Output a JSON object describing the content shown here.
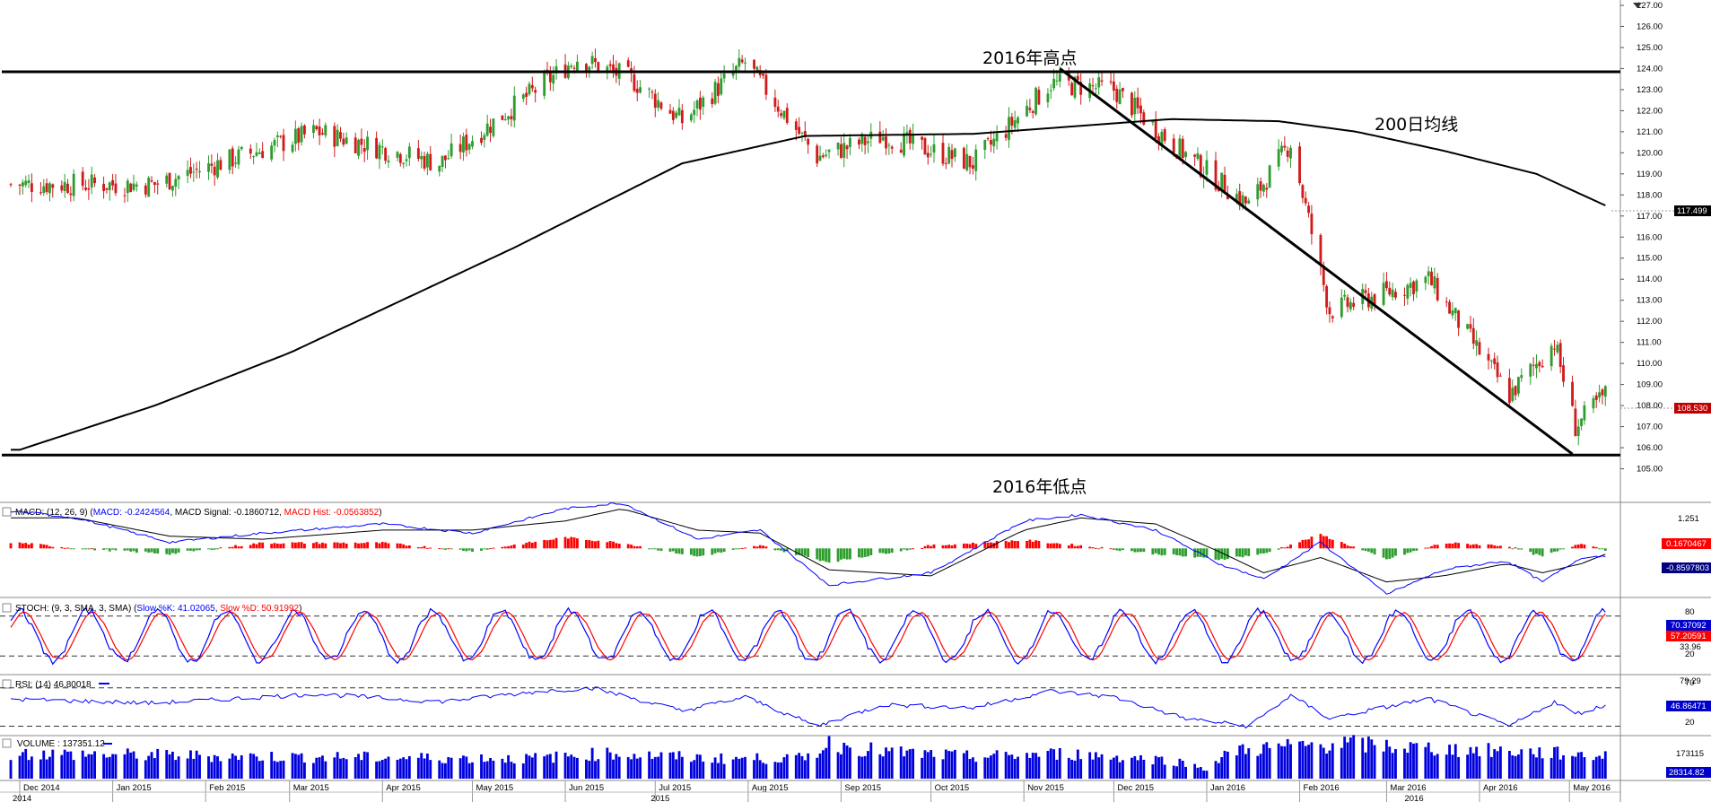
{
  "chart_data": {
    "type": "candlestick",
    "instrument_scale": {
      "ylim": [
        104.0,
        127.0
      ],
      "y_ticks": [
        "127.00",
        "126.00",
        "125.00",
        "124.00",
        "123.00",
        "122.00",
        "121.00",
        "120.00",
        "119.00",
        "118.00",
        "117.00",
        "116.00",
        "115.00",
        "114.00",
        "113.00",
        "112.00",
        "111.00",
        "110.00",
        "109.00",
        "108.00",
        "107.00",
        "106.00",
        "105.00"
      ]
    },
    "price_anchors": {
      "x": [
        "2014-12-01",
        "2015-01-15",
        "2015-03-10",
        "2015-04-20",
        "2015-06-05",
        "2015-06-23",
        "2015-07-10",
        "2015-07-31",
        "2015-08-24",
        "2015-09-15",
        "2015-10-15",
        "2015-11-10",
        "2015-12-01",
        "2015-12-20",
        "2016-01-15",
        "2016-01-29",
        "2016-02-11",
        "2016-03-15",
        "2016-04-11",
        "2016-04-26",
        "2016-05-03",
        "2016-05-13"
      ],
      "close": [
        118.5,
        118.5,
        121.0,
        119.5,
        124.5,
        123.5,
        121.5,
        124.3,
        119.8,
        120.8,
        119.5,
        123.3,
        123.0,
        120.5,
        117.5,
        120.5,
        112.5,
        114.0,
        108.5,
        111.0,
        107.0,
        108.53
      ]
    },
    "ma200_anchors": {
      "x": [
        "2014-12-01",
        "2015-01-15",
        "2015-03-01",
        "2015-05-15",
        "2015-07-10",
        "2015-08-20",
        "2015-10-15",
        "2015-12-20",
        "2016-01-25",
        "2016-02-20",
        "2016-03-20",
        "2016-04-20",
        "2016-05-13"
      ],
      "values": [
        105.9,
        108.0,
        110.5,
        115.5,
        119.5,
        120.8,
        120.9,
        121.6,
        121.5,
        121.0,
        120.1,
        119.0,
        117.5
      ]
    },
    "horizontal_lines": [
      {
        "label": "2016年高点",
        "value": 123.85
      },
      {
        "label": "2016年低点",
        "value": 105.65
      }
    ],
    "trendline": {
      "start": {
        "x": "2015-11-13",
        "y": 124.0
      },
      "end": {
        "x": "2016-05-02",
        "y": 105.7
      }
    },
    "ma_label": "200日均线",
    "last_price": {
      "value": "108.530",
      "color": "#c00000"
    },
    "ma_value": {
      "value": "117.499",
      "color": "#000000"
    },
    "x_months": [
      "Dec 2014",
      "Jan 2015",
      "Feb 2015",
      "Mar 2015",
      "Apr 2015",
      "May 2015",
      "Jun 2015",
      "Jul 2015",
      "Aug 2015",
      "Sep 2015",
      "Oct 2015",
      "Nov 2015",
      "Dec 2015",
      "Jan 2016",
      "Feb 2016",
      "Mar 2016",
      "Apr 2016",
      "May 2016"
    ],
    "x_years": [
      "2014",
      "2015",
      "2016"
    ],
    "macd": {
      "title_prefix": "MACD: (12, 26, 9) (",
      "line_text": "MACD: -0.2424564",
      "signal_text": ", MACD Signal: -0.1860712, ",
      "hist_text": "MACD Hist: -0.0563852",
      "title_suffix": ")",
      "y_tick": "1.251",
      "ylim": [
        -1.55,
        1.45
      ],
      "value_box_hist": "0.1670467",
      "value_box_line": "-0.8597803",
      "anchors": {
        "x": [
          "2014-12-01",
          "2014-12-20",
          "2015-01-20",
          "2015-02-20",
          "2015-04-01",
          "2015-05-01",
          "2015-06-01",
          "2015-06-20",
          "2015-07-15",
          "2015-08-05",
          "2015-08-28",
          "2015-10-01",
          "2015-11-01",
          "2015-11-20",
          "2015-12-15",
          "2016-01-05",
          "2016-01-20",
          "2016-02-08",
          "2016-03-01",
          "2016-03-20",
          "2016-04-10",
          "2016-04-22",
          "2016-05-05",
          "2016-05-13"
        ],
        "macd": [
          1.2,
          1.0,
          0.2,
          0.5,
          0.8,
          0.5,
          1.3,
          1.5,
          0.3,
          0.6,
          -1.2,
          -0.8,
          0.9,
          1.1,
          0.6,
          -0.5,
          -1.0,
          0.2,
          -1.5,
          -0.7,
          -0.4,
          -1.1,
          -0.3,
          -0.24
        ],
        "signal": [
          1.0,
          1.0,
          0.4,
          0.3,
          0.6,
          0.6,
          0.9,
          1.3,
          0.6,
          0.5,
          -0.7,
          -0.9,
          0.6,
          1.0,
          0.8,
          -0.1,
          -0.8,
          -0.3,
          -1.1,
          -0.9,
          -0.5,
          -0.8,
          -0.5,
          -0.19
        ]
      }
    },
    "stoch": {
      "title_prefix": "STOCH: (9, 3, SMA, 3, SMA) (",
      "k_text": "Slow %K: 41.02065",
      "sep": ", ",
      "d_text": "Slow %D: 50.91992",
      "title_suffix": ")",
      "y_ticks": [
        "80",
        "33.96",
        "20"
      ],
      "levels": [
        80,
        20
      ],
      "ylim": [
        0,
        100
      ],
      "value_box_k": "70.37092",
      "value_box_d": "57.20591",
      "cycle_days": 23
    },
    "rsi": {
      "title_prefix": "RSI: (14) ",
      "value_text": "46.80018",
      "y_ticks": [
        "79.29",
        "70",
        "20"
      ],
      "levels": [
        70,
        20
      ],
      "ylim": [
        10,
        85
      ],
      "value_box": "46.86471",
      "anchors": {
        "x": [
          "2014-12-01",
          "2015-01-15",
          "2015-03-10",
          "2015-04-20",
          "2015-05-25",
          "2015-06-10",
          "2015-07-10",
          "2015-07-31",
          "2015-08-24",
          "2015-09-15",
          "2015-10-15",
          "2015-11-10",
          "2015-12-01",
          "2015-12-25",
          "2016-01-15",
          "2016-01-29",
          "2016-02-11",
          "2016-03-15",
          "2016-04-11",
          "2016-04-26",
          "2016-05-03",
          "2016-05-13"
        ],
        "values": [
          55,
          50,
          62,
          52,
          66,
          70,
          40,
          58,
          20,
          48,
          44,
          66,
          58,
          30,
          20,
          60,
          30,
          56,
          20,
          52,
          36,
          47
        ]
      }
    },
    "volume": {
      "title": "VOLUME : 137351.12",
      "y_tick": "173115",
      "value_box": "28314.82",
      "ymax": 240000,
      "anchors": {
        "x": [
          "2014-12-01",
          "2015-03-01",
          "2015-05-20",
          "2015-06-15",
          "2015-07-20",
          "2015-08-20",
          "2015-08-28",
          "2015-09-15",
          "2015-10-15",
          "2015-11-15",
          "2015-12-20",
          "2016-01-01",
          "2016-01-10",
          "2016-02-15",
          "2016-03-15",
          "2016-04-15",
          "2016-05-13"
        ],
        "values": [
          150000,
          130000,
          120000,
          150000,
          120000,
          120000,
          210000,
          160000,
          130000,
          150000,
          110000,
          60000,
          170000,
          210000,
          180000,
          160000,
          137351
        ]
      }
    }
  }
}
